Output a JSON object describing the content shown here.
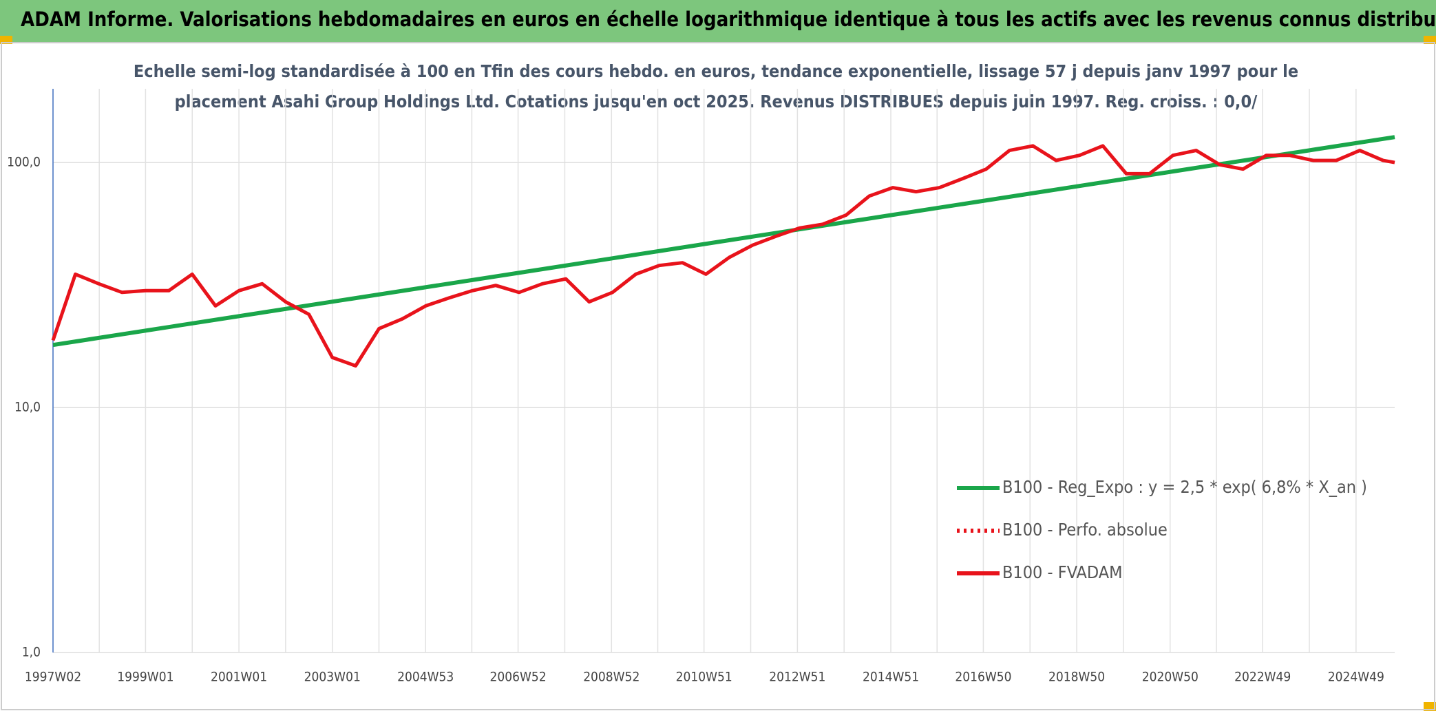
{
  "header": {
    "title": "ADAM Informe. Valorisations hebdomadaires en euros en échelle logarithmique identique à tous les actifs avec les revenus connus distribués"
  },
  "chart_data": {
    "type": "line",
    "subtitle": [
      "Echelle semi-log standardisée à 100 en Tfin des cours hebdo. en euros, tendance exponentielle, lissage 57 j depuis janv 1997 pour le",
      "placement Asahi Group Holdings Ltd. Cotations jusqu'en oct 2025. Revenus DISTRIBUES depuis juin 1997. Reg. croiss. : 0,0/"
    ],
    "log_scale": true,
    "grid": true,
    "ylim": [
      1,
      200
    ],
    "yticks": [
      {
        "value": 1,
        "label": "1,0"
      },
      {
        "value": 10,
        "label": "10,0"
      },
      {
        "value": 100,
        "label": "100,0"
      }
    ],
    "xlim": [
      "1997W02",
      "2025W40"
    ],
    "xticks": [
      "1997W02",
      "1999W01",
      "2001W01",
      "2003W01",
      "2004W53",
      "2006W52",
      "2008W52",
      "2010W51",
      "2012W51",
      "2014W51",
      "2016W50",
      "2018W50",
      "2020W50",
      "2022W49",
      "2024W49"
    ],
    "series": [
      {
        "name": "B100 - Reg_Expo : y = 2,5 * exp( 6,8% *  X_an )",
        "color": "#1aa64a",
        "x": [
          "1997W02",
          "2025W40"
        ],
        "values": [
          18,
          127
        ]
      },
      {
        "name": "B100 - Perfo. absolue",
        "color": "#e8131b",
        "dash": "dotted"
      },
      {
        "name": "B100 - FVADAM",
        "color": "#e8131b",
        "x": [
          "1997W02",
          "1997W27",
          "1998W01",
          "1998W27",
          "1999W01",
          "1999W27",
          "2000W01",
          "2000W27",
          "2001W01",
          "2001W27",
          "2002W01",
          "2002W27",
          "2003W01",
          "2003W27",
          "2004W01",
          "2004W27",
          "2005W01",
          "2005W27",
          "2006W01",
          "2006W27",
          "2007W01",
          "2007W27",
          "2008W01",
          "2008W27",
          "2009W01",
          "2009W27",
          "2010W01",
          "2010W27",
          "2011W01",
          "2011W27",
          "2012W01",
          "2012W27",
          "2013W01",
          "2013W27",
          "2014W01",
          "2014W27",
          "2015W01",
          "2015W27",
          "2016W01",
          "2016W27",
          "2017W01",
          "2017W27",
          "2018W01",
          "2018W27",
          "2019W01",
          "2019W27",
          "2020W01",
          "2020W27",
          "2021W01",
          "2021W27",
          "2022W01",
          "2022W27",
          "2023W01",
          "2023W27",
          "2024W01",
          "2024W27",
          "2025W01",
          "2025W27",
          "2025W40"
        ],
        "values": [
          18.8,
          35,
          32,
          29.5,
          30,
          30,
          35,
          26,
          30,
          32,
          27,
          24,
          16,
          14.8,
          21,
          23,
          26,
          28,
          30,
          31.5,
          29.5,
          32,
          33.5,
          27,
          29.5,
          35,
          38,
          39,
          35,
          41,
          46,
          50,
          54,
          56,
          61,
          73,
          79,
          76,
          79,
          86,
          94,
          112,
          117,
          102,
          107,
          117,
          90,
          90,
          107,
          112,
          98,
          94,
          107,
          107,
          102,
          102,
          112,
          102,
          100
        ]
      }
    ],
    "legend": "lower-right"
  }
}
